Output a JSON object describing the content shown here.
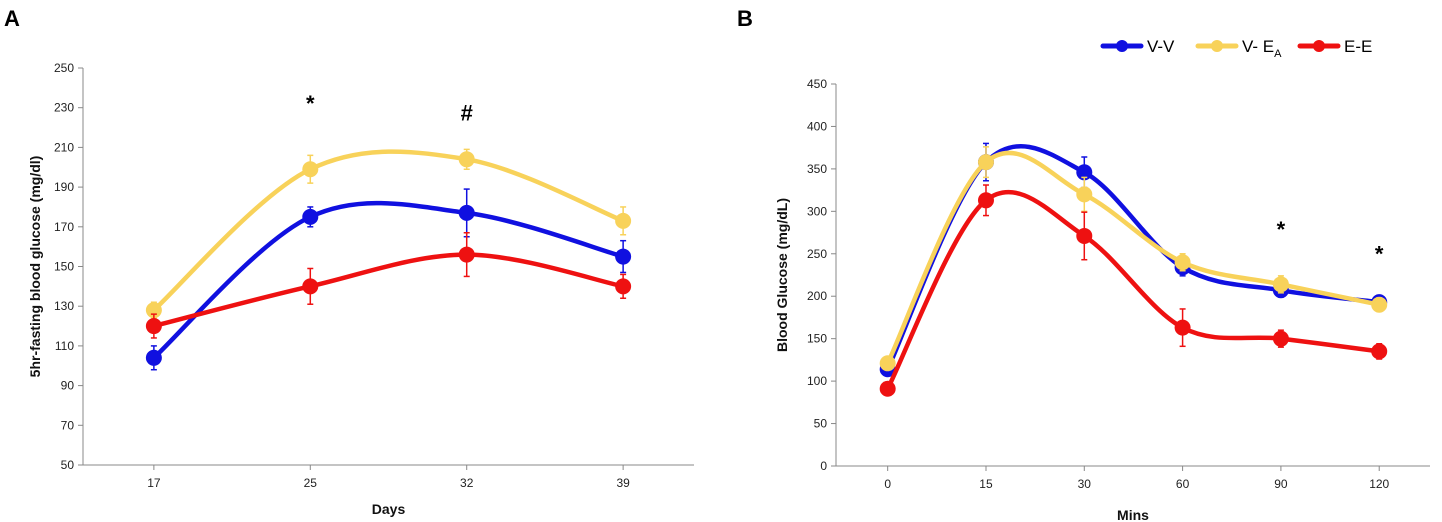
{
  "legend": [
    {
      "name": "V-V",
      "main": "V-V",
      "sub": "",
      "color": "#1010e0"
    },
    {
      "name": "V-EA",
      "main": "V- E",
      "sub": "A",
      "color": "#f8d25a"
    },
    {
      "name": "E-E",
      "main": "E-E",
      "sub": "",
      "color": "#ee1111"
    }
  ],
  "chart_data": [
    {
      "type": "line",
      "panel_label": "A",
      "xlabel": "Days",
      "ylabel": "5hr-fasting blood glucose (mg/dl)",
      "categories": [
        "17",
        "25",
        "32",
        "39"
      ],
      "ylim": [
        50,
        250
      ],
      "yticks": [
        50,
        70,
        90,
        110,
        130,
        150,
        170,
        190,
        210,
        230,
        250
      ],
      "series": [
        {
          "name": "V-V",
          "color": "#1010e0",
          "values": [
            104,
            175,
            177,
            155
          ],
          "errors": [
            6,
            5,
            12,
            8
          ]
        },
        {
          "name": "V-EA",
          "color": "#f8d25a",
          "values": [
            128,
            199,
            204,
            173
          ],
          "errors": [
            4,
            7,
            5,
            7
          ]
        },
        {
          "name": "E-E",
          "color": "#ee1111",
          "values": [
            120,
            140,
            156,
            140
          ],
          "errors": [
            6,
            9,
            11,
            6
          ]
        }
      ],
      "annotations": [
        {
          "text": "*",
          "category": "25",
          "y": 234
        },
        {
          "text": "#",
          "category": "32",
          "y": 229
        }
      ]
    },
    {
      "type": "line",
      "panel_label": "B",
      "xlabel": "Mins",
      "ylabel": "Blood Glucose (mg/dL)",
      "categories": [
        "0",
        "15",
        "30",
        "60",
        "90",
        "120"
      ],
      "ylim": [
        0,
        450
      ],
      "yticks": [
        0,
        50,
        100,
        150,
        200,
        250,
        300,
        350,
        400,
        450
      ],
      "series": [
        {
          "name": "V-V",
          "color": "#1010e0",
          "values": [
            114,
            358,
            346,
            234,
            207,
            193
          ],
          "errors": [
            6,
            22,
            18,
            10,
            8,
            8
          ]
        },
        {
          "name": "V-EA",
          "color": "#f8d25a",
          "values": [
            121,
            358,
            320,
            240,
            214,
            190
          ],
          "errors": [
            5,
            18,
            20,
            10,
            10,
            8
          ]
        },
        {
          "name": "E-E",
          "color": "#ee1111",
          "values": [
            91,
            313,
            271,
            163,
            150,
            135
          ],
          "errors": [
            5,
            18,
            28,
            22,
            10,
            9
          ]
        }
      ],
      "annotations": [
        {
          "text": "*",
          "category": "90",
          "y": 283
        },
        {
          "text": "*",
          "category": "120",
          "y": 254
        }
      ]
    }
  ]
}
